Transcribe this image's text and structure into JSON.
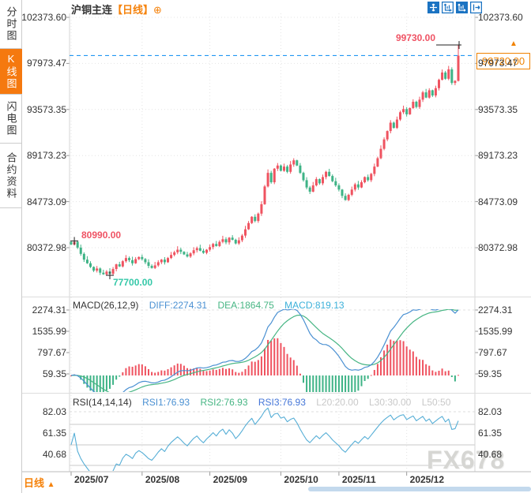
{
  "header": {
    "title": "沪铜主连",
    "period_tag": "【日线】",
    "add_icon": "⊕",
    "toolbar_icons": [
      "crosshair-move-icon",
      "axis-scale-icon",
      "auto-scale-icon",
      "exit-pan-icon"
    ]
  },
  "sidebar": {
    "items": [
      {
        "label": "分时图",
        "active": false
      },
      {
        "label": "K线图",
        "active": true
      },
      {
        "label": "闪电图",
        "active": false
      },
      {
        "label": "合约资料",
        "active": false
      }
    ]
  },
  "main_chart": {
    "y_axis_labels": [
      "102373.60",
      "97973.47",
      "93573.35",
      "89173.23",
      "84773.09",
      "80372.98"
    ],
    "annotations": {
      "high": "99730.00",
      "early_high": "80990.00",
      "low": "77700.00",
      "last_price": "98720.00",
      "new_high_arrow": "▲"
    }
  },
  "macd_panel": {
    "legend": {
      "name": "MACD(26,12,9)",
      "diff": "DIFF:2274.31",
      "dea": "DEA:1864.75",
      "macd": "MACD:819.13"
    },
    "y_axis_labels": [
      "2274.31",
      "1535.99",
      "797.67",
      "59.35"
    ]
  },
  "rsi_panel": {
    "legend": {
      "name": "RSI(14,14,14)",
      "rsi1": "RSI1:76.93",
      "rsi2": "RSI2:76.93",
      "rsi3": "RSI3:76.93",
      "l20": "L20:20.00",
      "l30": "L30:30.00",
      "l50": "L50:50"
    },
    "y_axis_labels": [
      "82.03",
      "61.35",
      "40.68"
    ]
  },
  "x_axis_labels": [
    "2025/07",
    "2025/08",
    "2025/09",
    "2025/10",
    "2025/11",
    "2025/12"
  ],
  "footer": {
    "period_label": "日线",
    "arrow": "▲"
  },
  "watermark": {
    "text": "FX678"
  },
  "colors": {
    "up": "#ef5360",
    "down": "#3eb386",
    "accent_orange": "#f5820b",
    "last_price_line": "#2196f3",
    "diff_blue": "#4a90d2",
    "dea_green": "#46b583",
    "macd_cyan": "#3bb0d9",
    "rsi_line": "#56aed6",
    "legend_gray": "#c8c8c8",
    "grid": "#e4e4e4",
    "marker_black": "#222222"
  },
  "chart_data": {
    "type": "candlestick",
    "title": "沪铜主连 日线",
    "x_months": [
      "2025/07",
      "2025/08",
      "2025/09",
      "2025/10",
      "2025/11",
      "2025/12"
    ],
    "month_start_indices": [
      0,
      22,
      43,
      65,
      83,
      104
    ],
    "y_axis": {
      "top_value": 102373.6,
      "step": 4400.12,
      "tick_values": [
        102373.6,
        97973.47,
        93573.35,
        89173.23,
        84773.09,
        80372.98
      ]
    },
    "candles": {
      "closes": [
        80650,
        80900,
        80350,
        79750,
        79200,
        78850,
        78500,
        78150,
        78350,
        77950,
        77800,
        78050,
        77850,
        78300,
        78750,
        78550,
        79050,
        79350,
        79150,
        78850,
        79250,
        79450,
        79250,
        78950,
        78600,
        78400,
        78650,
        78950,
        79200,
        78950,
        79350,
        79650,
        79900,
        80150,
        79950,
        79700,
        79500,
        79800,
        80100,
        80300,
        80050,
        79850,
        80150,
        80400,
        80700,
        80500,
        80900,
        81150,
        80850,
        81300,
        81100,
        80750,
        81050,
        81500,
        82100,
        82700,
        83300,
        82900,
        83600,
        84500,
        86200,
        87500,
        86600,
        87900,
        88200,
        87700,
        88100,
        87600,
        88300,
        88700,
        88200,
        87500,
        86800,
        86100,
        85700,
        86300,
        86900,
        86500,
        87100,
        87600,
        87200,
        86700,
        86300,
        85900,
        85300,
        84900,
        85400,
        85900,
        86400,
        86100,
        86600,
        87100,
        86800,
        87400,
        88100,
        88900,
        89800,
        90700,
        91500,
        92300,
        91800,
        92600,
        93300,
        93600,
        93100,
        93700,
        94300,
        93800,
        94500,
        95200,
        94700,
        95400,
        94900,
        95600,
        96400,
        97100,
        96500,
        97400,
        96100,
        96300,
        98720
      ]
    },
    "marked_points": [
      {
        "index": 1,
        "type": "high",
        "value": 80990
      },
      {
        "index": 12,
        "type": "low",
        "value": 77700
      },
      {
        "index": 120,
        "type": "high",
        "value": 99730
      }
    ],
    "last_price": 98720.0,
    "macd": {
      "diff": 2274.31,
      "dea": 1864.75,
      "macd": 819.13,
      "axis_values": [
        2274.31,
        1535.99,
        797.67,
        59.35
      ]
    },
    "rsi": {
      "period": 14,
      "rsi1": 76.93,
      "rsi2": 76.93,
      "rsi3": 76.93,
      "levels": [
        20,
        30,
        50
      ],
      "axis_values": [
        82.03,
        61.35,
        40.68
      ]
    }
  }
}
